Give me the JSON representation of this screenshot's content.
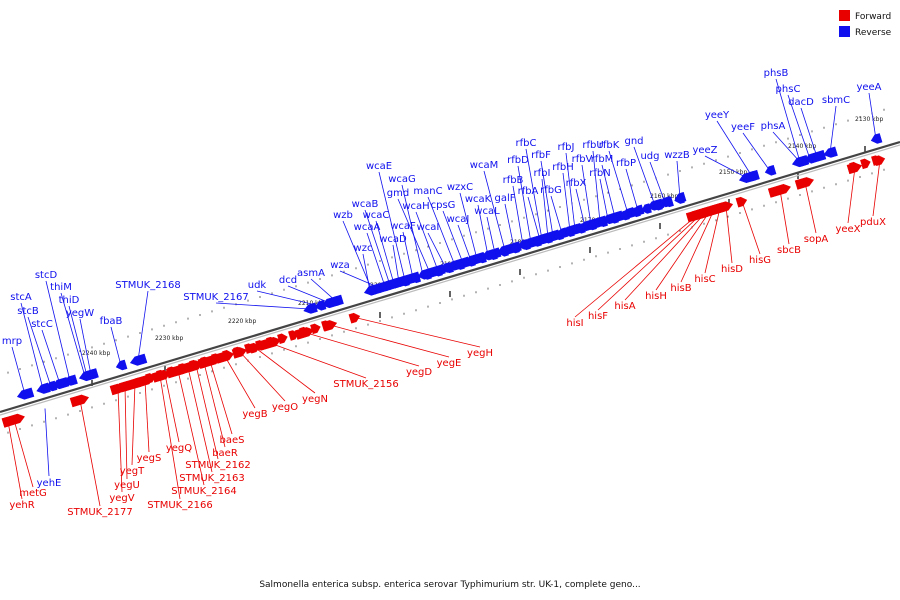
{
  "legend": {
    "forward_label": "Forward",
    "reverse_label": "Reverse",
    "forward_color": "#e80000",
    "reverse_color": "#1010ee"
  },
  "caption": "Salmonella enterica subsp. enterica serovar Typhimurium str. UK-1, complete geno...",
  "ticks": [
    "2130 kbp",
    "2140 kbp",
    "2150 kbp",
    "2160 kbp",
    "2170 kbp",
    "2180 kbp",
    "2190 kbp",
    "2200 kbp",
    "2210 kbp",
    "2220 kbp",
    "2230 kbp",
    "2240 kbp"
  ],
  "reverse_genes": [
    "yeeA",
    "sbmC",
    "dacD",
    "phsC",
    "phsB",
    "phsA",
    "yeeF",
    "yeeY",
    "yeeZ",
    "wzzB",
    "udg",
    "gnd",
    "rfbP",
    "rfbK",
    "rfbM",
    "rfbN",
    "rfbU",
    "rfbV",
    "rfbX",
    "rfbJ",
    "rfbH",
    "rfbG",
    "rfbF",
    "rfbI",
    "rfbC",
    "rfbA",
    "rfbD",
    "rfbB",
    "galF",
    "wcaM",
    "wcaL",
    "wcaK",
    "wzxC",
    "wcaJ",
    "cpsG",
    "manC",
    "wcaI",
    "wcaH",
    "gmd",
    "wcaG",
    "wcaF",
    "wcaE",
    "wcaD",
    "wcaC",
    "wcaB",
    "wcaA",
    "wza",
    "wzb",
    "wzc",
    "asmA",
    "dcd",
    "udk",
    "STMUK_2167",
    "STMUK_2168",
    "fbaB",
    "yegW",
    "thiD",
    "thiM",
    "stcD",
    "stcC",
    "stcB",
    "stcA",
    "mrp",
    "yehE"
  ],
  "forward_genes": [
    "pduX",
    "yeeX",
    "sopA",
    "sbcB",
    "hisG",
    "hisD",
    "hisC",
    "hisB",
    "hisH",
    "hisA",
    "hisF",
    "hisI",
    "yegH",
    "yegE",
    "yegD",
    "STMUK_2156",
    "yegN",
    "yegO",
    "yegB",
    "baeS",
    "baeR",
    "STMUK_2162",
    "STMUK_2163",
    "STMUK_2164",
    "yegQ",
    "STMUK_2166",
    "yegS",
    "yegT",
    "yegU",
    "yegV",
    "STMUK_2177",
    "metG",
    "yehR"
  ]
}
